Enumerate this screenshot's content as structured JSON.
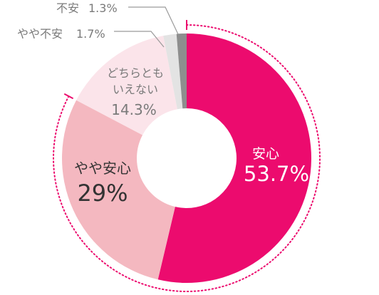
{
  "chart_data": {
    "type": "pie",
    "style": "donut",
    "start": "top",
    "direction": "clockwise",
    "slices": [
      {
        "label": "安心",
        "value": 53.7,
        "value_label": "53.7%",
        "color": "#ec0b6e",
        "label_color": "#ffffff"
      },
      {
        "label": "やや安心",
        "value": 29,
        "value_label": "29%",
        "color": "#f4b8c0",
        "label_color": "#333333"
      },
      {
        "label_lines": [
          "どちらとも",
          "いえない"
        ],
        "value": 14.3,
        "value_label": "14.3%",
        "color": "#fbe4ea",
        "label_color": "#7a7a7a"
      },
      {
        "label": "やや不安",
        "value": 1.7,
        "value_label": "1.7%",
        "color": "#e3e3e3",
        "label_color": "#7a7a7a"
      },
      {
        "label": "不安",
        "value": 1.3,
        "value_label": "1.3%",
        "color": "#8e8e8e",
        "label_color": "#7a7a7a"
      }
    ],
    "highlight_arc": {
      "slices": [
        "安心",
        "やや安心"
      ],
      "color": "#ec0b6e",
      "dotted": true
    }
  }
}
